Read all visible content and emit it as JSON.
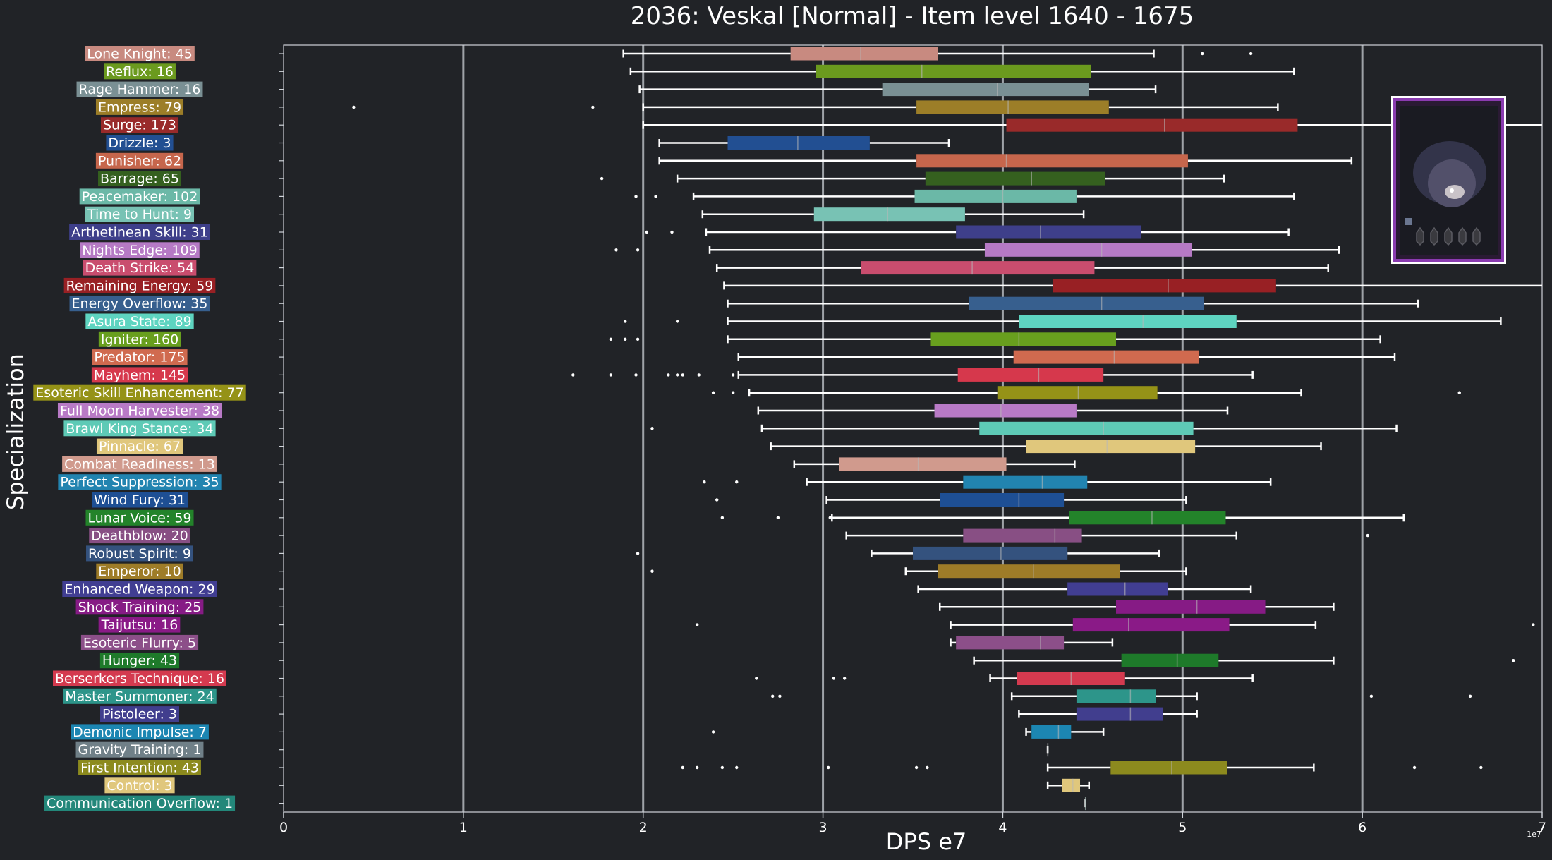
{
  "chart_data": {
    "type": "boxplot",
    "title": "2036: Veskal [Normal] - Item level 1640 - 1675",
    "xlabel": "DPS e7",
    "ylabel": "Specialization",
    "x_scale_note": "1e7",
    "xlim": [
      0,
      7
    ],
    "xticks": [
      "0",
      "1",
      "2",
      "3",
      "4",
      "5",
      "6",
      "7"
    ],
    "grid": "vertical",
    "colors": {
      "background": "#212327",
      "axis": "#cfd3d9",
      "grid": "#9ea2a7",
      "text": "#ffffff",
      "whisker": "#ffffff"
    },
    "series": [
      {
        "label": "Lone Knight: 45",
        "color": "#c88a80",
        "wlo": 1.89,
        "q1": 2.82,
        "med": 3.21,
        "q3": 3.64,
        "whi": 4.84,
        "fliers": [
          5.11,
          5.38
        ]
      },
      {
        "label": "Reflux: 16",
        "color": "#6b9a1e",
        "wlo": 1.93,
        "q1": 2.96,
        "med": 3.55,
        "q3": 4.49,
        "whi": 5.62,
        "fliers": []
      },
      {
        "label": "Rage Hammer: 16",
        "color": "#7a9094",
        "wlo": 1.98,
        "q1": 3.33,
        "med": 3.97,
        "q3": 4.48,
        "whi": 4.85,
        "fliers": []
      },
      {
        "label": "Empress: 79",
        "color": "#9c7e28",
        "wlo": 2.0,
        "q1": 3.52,
        "med": 4.03,
        "q3": 4.59,
        "whi": 5.53,
        "fliers": [
          0.39,
          1.72
        ]
      },
      {
        "label": "Surge: 173",
        "color": "#992a2a",
        "wlo": 2.0,
        "q1": 4.02,
        "med": 4.9,
        "q3": 5.64,
        "whi": 7.0,
        "fliers": []
      },
      {
        "label": "Drizzle: 3",
        "color": "#224f92",
        "wlo": 2.09,
        "q1": 2.47,
        "med": 2.86,
        "q3": 3.26,
        "whi": 3.7,
        "fliers": []
      },
      {
        "label": "Punisher: 62",
        "color": "#c6664c",
        "wlo": 2.09,
        "q1": 3.52,
        "med": 4.02,
        "q3": 5.03,
        "whi": 5.94,
        "fliers": []
      },
      {
        "label": "Barrage: 65",
        "color": "#35601f",
        "wlo": 2.19,
        "q1": 3.57,
        "med": 4.16,
        "q3": 4.57,
        "whi": 5.23,
        "fliers": [
          1.77
        ]
      },
      {
        "label": "Peacemaker: 102",
        "color": "#6bb8a7",
        "wlo": 2.28,
        "q1": 3.51,
        "med": 4.0,
        "q3": 4.41,
        "whi": 5.62,
        "fliers": [
          1.96,
          2.07
        ]
      },
      {
        "label": "Time to Hunt: 9",
        "color": "#78c2b4",
        "wlo": 2.33,
        "q1": 2.95,
        "med": 3.36,
        "q3": 3.79,
        "whi": 4.45,
        "fliers": []
      },
      {
        "label": "Arthetinean Skill: 31",
        "color": "#3e3f8a",
        "wlo": 2.35,
        "q1": 3.74,
        "med": 4.21,
        "q3": 4.77,
        "whi": 5.59,
        "fliers": [
          2.02,
          2.16
        ]
      },
      {
        "label": "Nights Edge: 109",
        "color": "#b67ac5",
        "wlo": 2.37,
        "q1": 3.9,
        "med": 4.55,
        "q3": 5.05,
        "whi": 5.87,
        "fliers": [
          1.85,
          1.97
        ]
      },
      {
        "label": "Death Strike: 54",
        "color": "#c94d6e",
        "wlo": 2.41,
        "q1": 3.21,
        "med": 3.83,
        "q3": 4.51,
        "whi": 5.81,
        "fliers": []
      },
      {
        "label": "Remaining Energy: 59",
        "color": "#982024",
        "wlo": 2.45,
        "q1": 4.28,
        "med": 4.92,
        "q3": 5.52,
        "whi": 7.0,
        "fliers": []
      },
      {
        "label": "Energy Overflow: 35",
        "color": "#375f8e",
        "wlo": 2.47,
        "q1": 3.81,
        "med": 4.55,
        "q3": 5.12,
        "whi": 6.31,
        "fliers": []
      },
      {
        "label": "Asura State: 89",
        "color": "#5ed4c0",
        "wlo": 2.47,
        "q1": 4.09,
        "med": 4.78,
        "q3": 5.3,
        "whi": 6.77,
        "fliers": [
          1.9,
          2.19
        ]
      },
      {
        "label": "Igniter: 160",
        "color": "#689f1e",
        "wlo": 2.47,
        "q1": 3.6,
        "med": 4.09,
        "q3": 4.63,
        "whi": 6.1,
        "fliers": [
          1.82,
          1.9,
          1.97
        ]
      },
      {
        "label": "Predator: 175",
        "color": "#d06a4f",
        "wlo": 2.53,
        "q1": 4.06,
        "med": 4.62,
        "q3": 5.09,
        "whi": 6.18,
        "fliers": []
      },
      {
        "label": "Mayhem: 145",
        "color": "#d6384c",
        "wlo": 2.53,
        "q1": 3.75,
        "med": 4.2,
        "q3": 4.56,
        "whi": 5.39,
        "fliers": [
          1.61,
          1.82,
          1.96,
          2.14,
          2.19,
          2.22,
          2.31,
          2.5
        ]
      },
      {
        "label": "Esoteric Skill Enhancement: 77",
        "color": "#959217",
        "wlo": 2.59,
        "q1": 3.97,
        "med": 4.42,
        "q3": 4.86,
        "whi": 5.66,
        "fliers": [
          2.39,
          2.5,
          6.54
        ]
      },
      {
        "label": "Full Moon Harvester: 38",
        "color": "#b87ac6",
        "wlo": 2.64,
        "q1": 3.62,
        "med": 3.99,
        "q3": 4.41,
        "whi": 5.25,
        "fliers": []
      },
      {
        "label": "Brawl King Stance: 34",
        "color": "#5ecab6",
        "wlo": 2.66,
        "q1": 3.87,
        "med": 4.56,
        "q3": 5.06,
        "whi": 6.19,
        "fliers": [
          2.05
        ]
      },
      {
        "label": "Pinnacle: 67",
        "color": "#e0c77c",
        "wlo": 2.71,
        "q1": 4.13,
        "med": 4.58,
        "q3": 5.07,
        "whi": 5.77,
        "fliers": []
      },
      {
        "label": "Combat Readiness: 13",
        "color": "#d09a8d",
        "wlo": 2.84,
        "q1": 3.09,
        "med": 3.53,
        "q3": 4.02,
        "whi": 4.4,
        "fliers": []
      },
      {
        "label": "Perfect Suppression: 35",
        "color": "#2284b0",
        "wlo": 2.91,
        "q1": 3.78,
        "med": 4.22,
        "q3": 4.47,
        "whi": 5.49,
        "fliers": [
          2.34,
          2.52
        ]
      },
      {
        "label": "Wind Fury: 31",
        "color": "#1e4f94",
        "wlo": 3.02,
        "q1": 3.65,
        "med": 4.09,
        "q3": 4.34,
        "whi": 5.02,
        "fliers": [
          2.41
        ]
      },
      {
        "label": "Lunar Voice: 59",
        "color": "#23832a",
        "wlo": 3.05,
        "q1": 4.37,
        "med": 4.83,
        "q3": 5.24,
        "whi": 6.23,
        "fliers": [
          2.44,
          2.75,
          3.04
        ]
      },
      {
        "label": "Deathblow: 20",
        "color": "#884f84",
        "wlo": 3.13,
        "q1": 3.78,
        "med": 4.29,
        "q3": 4.44,
        "whi": 5.3,
        "fliers": [
          6.03
        ]
      },
      {
        "label": "Robust Spirit: 9",
        "color": "#34527e",
        "wlo": 3.27,
        "q1": 3.5,
        "med": 3.99,
        "q3": 4.36,
        "whi": 4.87,
        "fliers": [
          1.97
        ]
      },
      {
        "label": "Emperor: 10",
        "color": "#9e7c28",
        "wlo": 3.46,
        "q1": 3.64,
        "med": 4.17,
        "q3": 4.65,
        "whi": 5.02,
        "fliers": [
          2.05
        ]
      },
      {
        "label": "Enhanced Weapon: 29",
        "color": "#413e92",
        "wlo": 3.53,
        "q1": 4.36,
        "med": 4.68,
        "q3": 4.92,
        "whi": 5.38,
        "fliers": []
      },
      {
        "label": "Shock Training: 25",
        "color": "#861b85",
        "wlo": 3.65,
        "q1": 4.63,
        "med": 5.08,
        "q3": 5.46,
        "whi": 5.84,
        "fliers": []
      },
      {
        "label": "Taijutsu: 16",
        "color": "#8a1a87",
        "wlo": 3.71,
        "q1": 4.39,
        "med": 4.7,
        "q3": 5.26,
        "whi": 5.74,
        "fliers": [
          2.3,
          6.95
        ]
      },
      {
        "label": "Esoteric Flurry: 5",
        "color": "#8c4f89",
        "wlo": 3.71,
        "q1": 3.74,
        "med": 4.21,
        "q3": 4.34,
        "whi": 4.61,
        "fliers": []
      },
      {
        "label": "Hunger: 43",
        "color": "#1e7a2a",
        "wlo": 3.84,
        "q1": 4.66,
        "med": 4.97,
        "q3": 5.2,
        "whi": 5.84,
        "fliers": [
          6.84
        ]
      },
      {
        "label": "Berserkers Technique: 16",
        "color": "#d43a4f",
        "wlo": 3.93,
        "q1": 4.08,
        "med": 4.38,
        "q3": 4.68,
        "whi": 5.39,
        "fliers": [
          2.63,
          3.06,
          3.12
        ]
      },
      {
        "label": "Master Summoner: 24",
        "color": "#2d958a",
        "wlo": 4.05,
        "q1": 4.41,
        "med": 4.71,
        "q3": 4.85,
        "whi": 5.08,
        "fliers": [
          2.72,
          2.76,
          6.05,
          6.6
        ]
      },
      {
        "label": "Pistoleer: 3",
        "color": "#413e8e",
        "wlo": 4.09,
        "q1": 4.41,
        "med": 4.71,
        "q3": 4.89,
        "whi": 5.08,
        "fliers": []
      },
      {
        "label": "Demonic Impulse: 7",
        "color": "#1c86b2",
        "wlo": 4.13,
        "q1": 4.16,
        "med": 4.31,
        "q3": 4.38,
        "whi": 4.56,
        "fliers": [
          2.39
        ]
      },
      {
        "label": "Gravity Training: 1",
        "color": "#708088",
        "wlo": 4.25,
        "q1": 4.25,
        "med": 4.25,
        "q3": 4.25,
        "whi": 4.25,
        "fliers": []
      },
      {
        "label": "First Intention: 43",
        "color": "#8c8a1e",
        "wlo": 4.25,
        "q1": 4.6,
        "med": 4.94,
        "q3": 5.25,
        "whi": 5.73,
        "fliers": [
          2.22,
          2.3,
          2.44,
          2.52,
          3.03,
          3.52,
          3.58,
          6.29,
          6.66
        ]
      },
      {
        "label": "Control: 3",
        "color": "#e0c77c",
        "wlo": 4.25,
        "q1": 4.33,
        "med": 4.39,
        "q3": 4.43,
        "whi": 4.48,
        "fliers": []
      },
      {
        "label": "Communication Overflow: 1",
        "color": "#23877a",
        "wlo": 4.46,
        "q1": 4.46,
        "med": 4.46,
        "q3": 4.46,
        "whi": 4.46,
        "fliers": []
      }
    ]
  }
}
